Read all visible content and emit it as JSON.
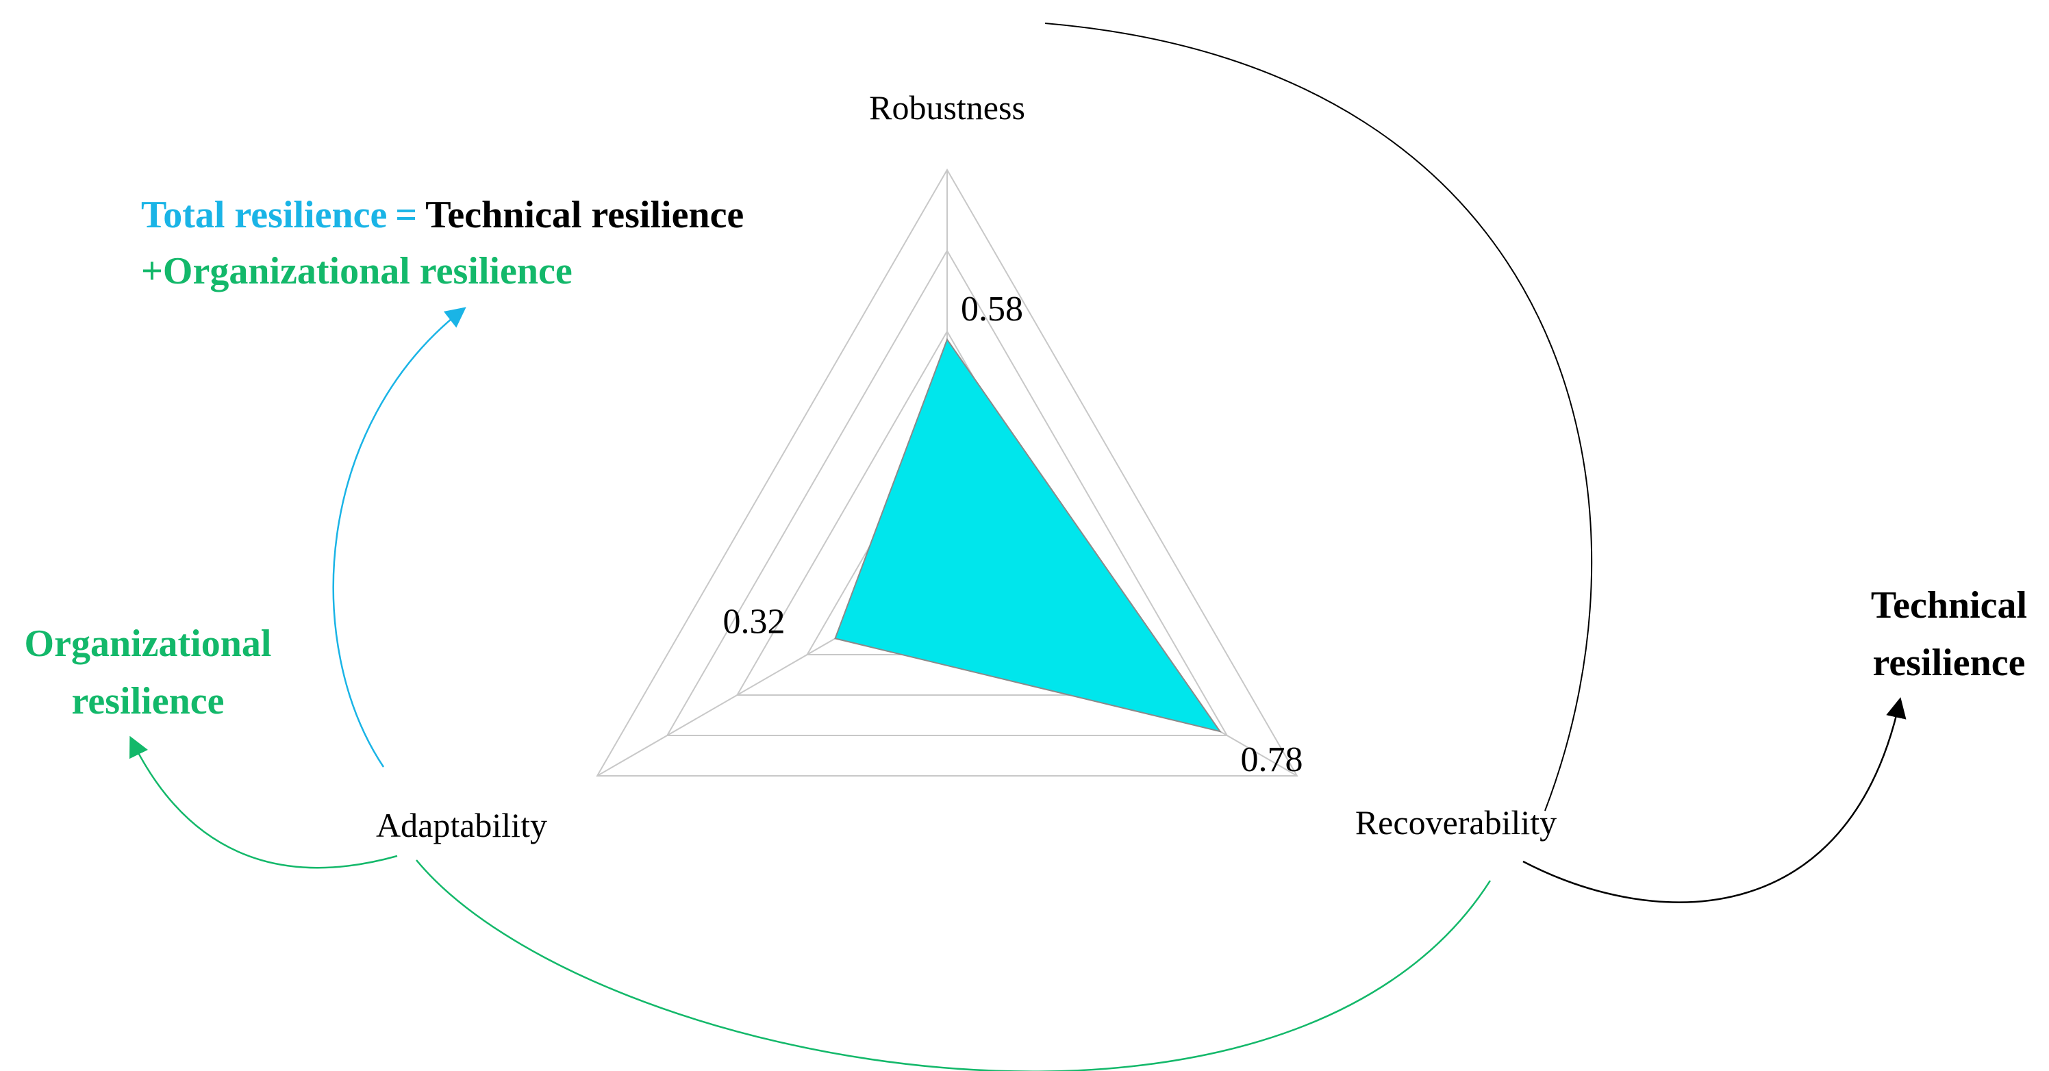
{
  "equation": {
    "total": "Total resilience",
    "equals": "=",
    "technical": "Technical resilience",
    "plus_organizational": "+Organizational resilience"
  },
  "side_labels": {
    "organizational_line1": "Organizational",
    "organizational_line2": "resilience",
    "technical_line1": "Technical",
    "technical_line2": "resilience"
  },
  "colors": {
    "total": "#1ab4e6",
    "organizational": "#13b86a",
    "technical": "#000000",
    "fill": "#00e6ec",
    "grid": "#c8c8c8",
    "outline": "#8a8a8a"
  },
  "chart_data": {
    "type": "radar",
    "axes": [
      "Robustness",
      "Recoverability",
      "Adaptability"
    ],
    "values": [
      0.58,
      0.78,
      0.32
    ],
    "value_labels": [
      "0.58",
      "0.78",
      "0.32"
    ],
    "range": [
      0,
      1
    ],
    "grid_levels": [
      0.2,
      0.4,
      0.6,
      0.8,
      1.0
    ]
  }
}
